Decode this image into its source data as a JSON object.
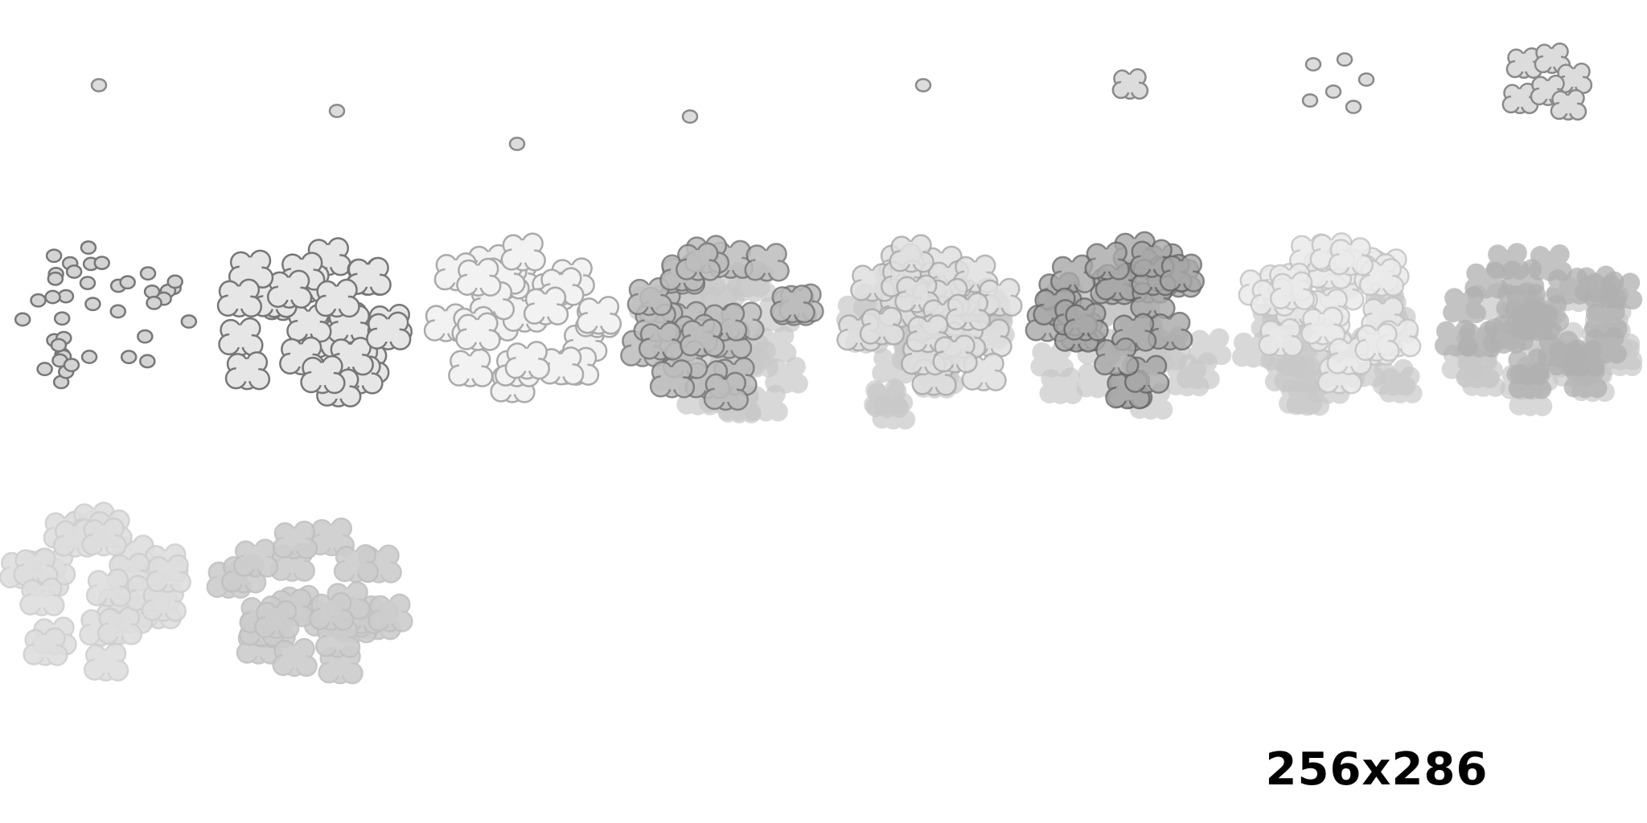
{
  "label": "256x286"
}
